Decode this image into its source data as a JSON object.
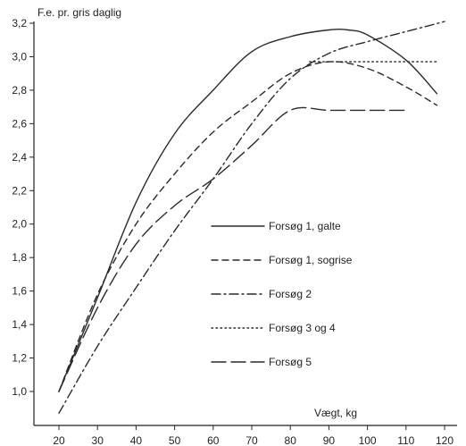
{
  "chart_data": {
    "type": "line",
    "ylabel": "F.e. pr. gris daglig",
    "xlabel": "Vægt, kg",
    "xlim": [
      20,
      120
    ],
    "ylim": [
      0.8,
      3.2
    ],
    "x_ticks": [
      "20",
      "30",
      "40",
      "50",
      "60",
      "70",
      "80",
      "90",
      "100",
      "110",
      "120"
    ],
    "y_ticks": [
      "1,0",
      "1,2",
      "1,4",
      "1,6",
      "1,8",
      "2,0",
      "2,2",
      "2,4",
      "2,6",
      "2,8",
      "3,0",
      "3,2"
    ],
    "grid": false,
    "legend_position": "center-right",
    "series": [
      {
        "name": "Forsøg 1, galte",
        "dash": "solid",
        "x": [
          20,
          30,
          40,
          50,
          60,
          70,
          80,
          90,
          95,
          100,
          110,
          118
        ],
        "y": [
          1.0,
          1.56,
          2.13,
          2.54,
          2.8,
          3.03,
          3.12,
          3.16,
          3.16,
          3.13,
          2.98,
          2.78
        ]
      },
      {
        "name": "Forsøg 1, sogrise",
        "dash": "dashed",
        "x": [
          20,
          30,
          40,
          50,
          60,
          70,
          80,
          90,
          100,
          110,
          118
        ],
        "y": [
          1.0,
          1.58,
          2.0,
          2.3,
          2.55,
          2.73,
          2.9,
          2.97,
          2.93,
          2.82,
          2.71
        ]
      },
      {
        "name": "Forsøg 2",
        "dash": "dash-dot",
        "x": [
          20,
          30,
          40,
          50,
          60,
          70,
          80,
          90,
          100,
          110,
          120
        ],
        "y": [
          0.87,
          1.27,
          1.62,
          1.96,
          2.27,
          2.6,
          2.87,
          3.02,
          3.09,
          3.15,
          3.21
        ]
      },
      {
        "name": "Forsøg 3 og 4",
        "dash": "dotted",
        "x": [
          85,
          90,
          100,
          110,
          118
        ],
        "y": [
          2.97,
          2.97,
          2.97,
          2.97,
          2.97
        ]
      },
      {
        "name": "Forsøg 5",
        "dash": "long-dash",
        "x": [
          20,
          30,
          40,
          50,
          60,
          70,
          80,
          90,
          100,
          110
        ],
        "y": [
          1.0,
          1.5,
          1.88,
          2.11,
          2.27,
          2.47,
          2.68,
          2.68,
          2.68,
          2.68
        ]
      }
    ]
  }
}
